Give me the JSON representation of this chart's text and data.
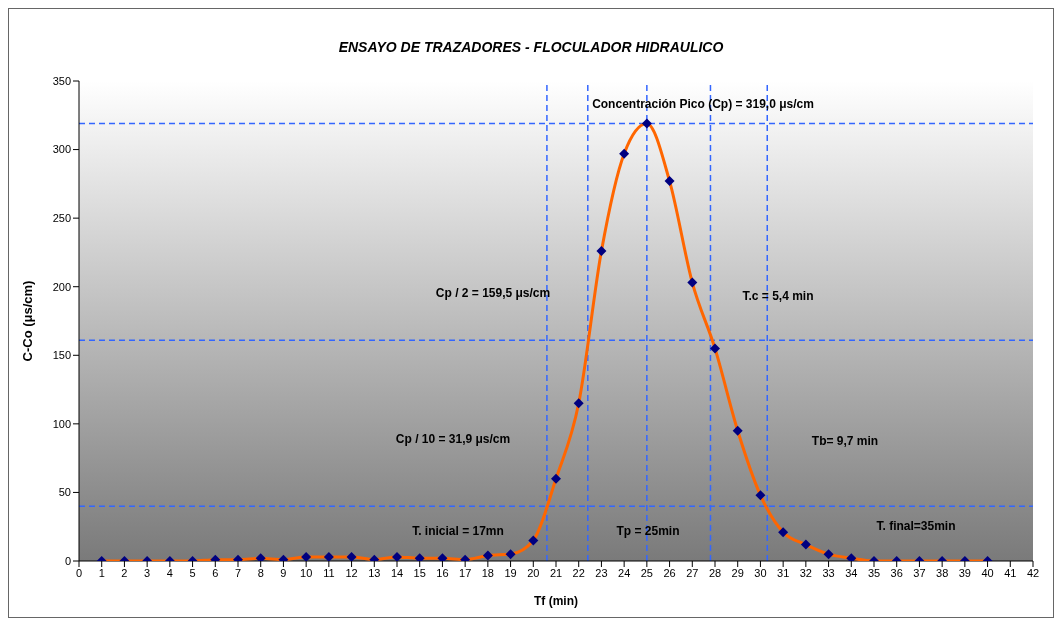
{
  "chart_data": {
    "type": "line",
    "title": "ENSAYO DE TRAZADORES - FLOCULADOR HIDRAULICO",
    "xlabel": "Tf (min)",
    "ylabel": "C-Co (μs/cm)",
    "x": [
      1,
      2,
      3,
      4,
      5,
      6,
      7,
      8,
      9,
      10,
      11,
      12,
      13,
      14,
      15,
      16,
      17,
      18,
      19,
      20,
      21,
      22,
      23,
      24,
      25,
      26,
      27,
      28,
      29,
      30,
      31,
      32,
      33,
      34,
      35,
      36,
      37,
      38,
      39,
      40
    ],
    "series": [
      {
        "color": "#ff6600",
        "values": [
          0,
          0,
          0,
          0,
          0,
          1,
          1,
          2,
          1,
          3,
          3,
          3,
          1,
          3,
          2,
          2,
          1,
          4,
          5,
          15,
          60,
          115,
          226,
          297,
          319,
          277,
          203,
          155,
          95,
          48,
          21,
          12,
          5,
          2,
          0,
          0,
          0,
          0,
          0,
          0
        ]
      }
    ],
    "xlim": [
      0,
      42
    ],
    "xticks": [
      0,
      1,
      2,
      3,
      4,
      5,
      6,
      7,
      8,
      9,
      10,
      11,
      12,
      13,
      14,
      15,
      16,
      17,
      18,
      19,
      20,
      21,
      22,
      23,
      24,
      25,
      26,
      27,
      28,
      29,
      30,
      31,
      32,
      33,
      34,
      35,
      36,
      37,
      38,
      39,
      40,
      41,
      42
    ],
    "ylim": [
      0,
      350
    ],
    "yticks": [
      0,
      50,
      100,
      150,
      200,
      250,
      300,
      350
    ],
    "grid": false,
    "marker": "diamond",
    "line_style": "solid",
    "ref_lines": [
      {
        "axis": "y",
        "value": 319,
        "color": "#3366ff",
        "line_style": "dashed"
      },
      {
        "axis": "y",
        "value": 161,
        "color": "#3366ff",
        "line_style": "dashed"
      },
      {
        "axis": "y",
        "value": 40,
        "color": "#3366ff",
        "line_style": "dashed"
      },
      {
        "axis": "x",
        "value": 25,
        "color": "#3366ff",
        "line_style": "dashed"
      },
      {
        "axis": "x",
        "value": 22.4,
        "color": "#3366ff",
        "line_style": "dashed"
      },
      {
        "axis": "x",
        "value": 27.8,
        "color": "#3366ff",
        "line_style": "dashed"
      },
      {
        "axis": "x",
        "value": 20.6,
        "color": "#3366ff",
        "line_style": "dashed"
      },
      {
        "axis": "x",
        "value": 30.3,
        "color": "#3366ff",
        "line_style": "dashed"
      }
    ],
    "annotations": [
      "Concentración Pico (Cp) = 319,0 μs/cm",
      "Cp / 2 = 159,5 μs/cm",
      "Cp / 10 = 31,9 μs/cm",
      "T. inicial = 17mn",
      "Tp = 25min",
      "T.c = 5,4 min",
      "Tb= 9,7 min",
      "T. final=35min"
    ]
  }
}
